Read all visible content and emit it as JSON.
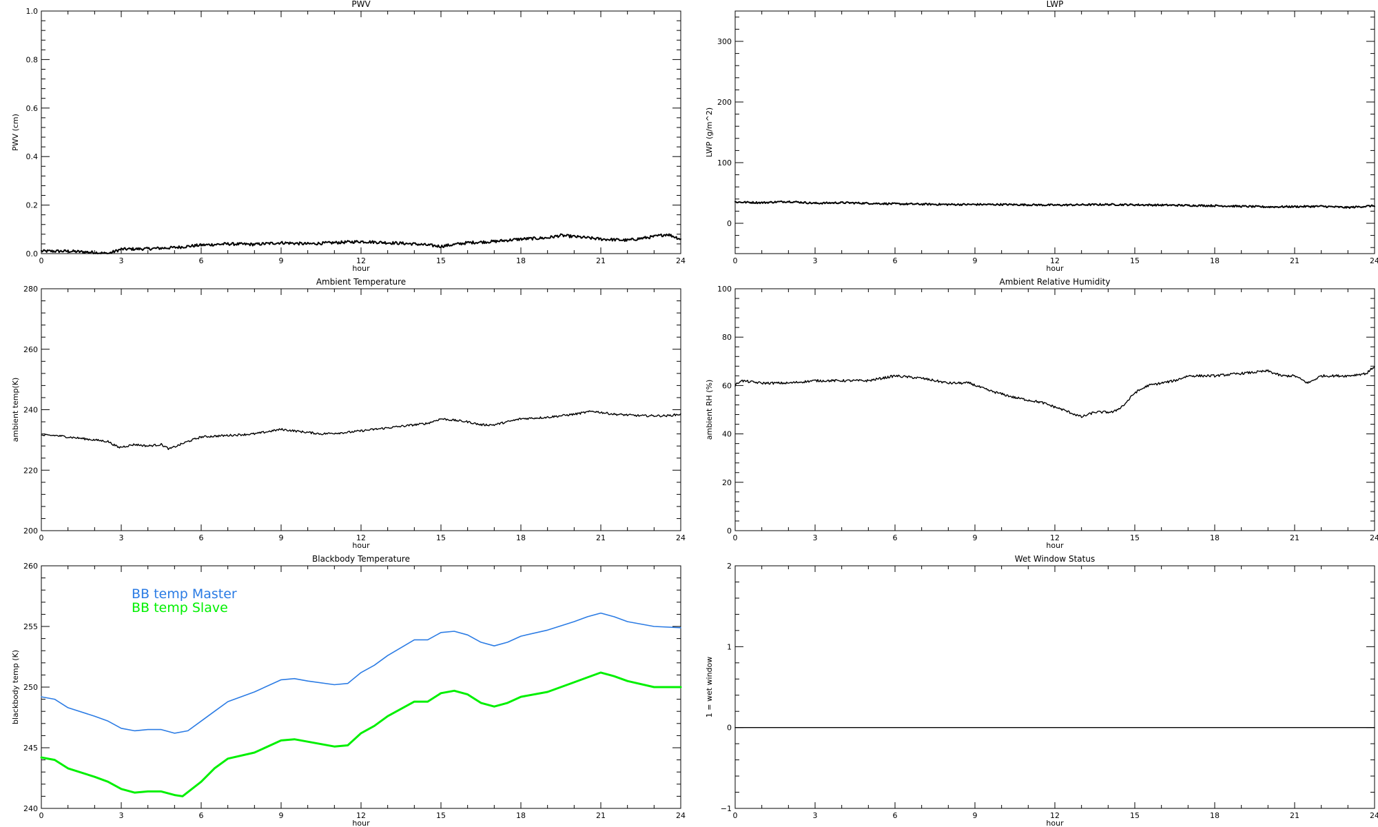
{
  "chart_data": [
    {
      "type": "line",
      "title": "PWV",
      "xlabel": "hour",
      "ylabel": "PWV (cm)",
      "xlim": [
        0,
        24
      ],
      "ylim": [
        0.0,
        1.0
      ],
      "xticks": [
        0,
        3,
        6,
        9,
        12,
        15,
        18,
        21,
        24
      ],
      "xtick_labels": [
        "0",
        "3",
        "6",
        "9",
        "12",
        "15",
        "18",
        "21",
        "24"
      ],
      "yticks": [
        0.0,
        0.2,
        0.4,
        0.6,
        0.8,
        1.0
      ],
      "ytick_labels": [
        "0.0",
        "0.2",
        "0.4",
        "0.6",
        "0.8",
        "1.0"
      ],
      "noise": 0.006,
      "series": [
        {
          "color": "#000000",
          "width": 2,
          "x": [
            0,
            1,
            2,
            2.5,
            3,
            4,
            5,
            5.5,
            6,
            7,
            8,
            9,
            10,
            11,
            12,
            13,
            14,
            15,
            16,
            17,
            18,
            19,
            19.5,
            20,
            21,
            22,
            23,
            23.5,
            24
          ],
          "y": [
            0.01,
            0.01,
            0.005,
            0.0,
            0.018,
            0.02,
            0.025,
            0.03,
            0.035,
            0.04,
            0.038,
            0.045,
            0.04,
            0.045,
            0.05,
            0.045,
            0.04,
            0.03,
            0.045,
            0.05,
            0.06,
            0.065,
            0.075,
            0.07,
            0.06,
            0.055,
            0.07,
            0.08,
            0.06
          ]
        }
      ]
    },
    {
      "type": "line",
      "title": "LWP",
      "xlabel": "hour",
      "ylabel": "LWP (g/m^2)",
      "xlim": [
        0,
        24
      ],
      "ylim": [
        -50,
        350
      ],
      "xticks": [
        0,
        3,
        6,
        9,
        12,
        15,
        18,
        21,
        24
      ],
      "xtick_labels": [
        "0",
        "3",
        "6",
        "9",
        "12",
        "15",
        "18",
        "21",
        "24"
      ],
      "yticks": [
        0,
        100,
        200,
        300
      ],
      "ytick_labels": [
        "0",
        "100",
        "200",
        "300"
      ],
      "noise": 1.5,
      "series": [
        {
          "color": "#000000",
          "width": 2,
          "x": [
            0,
            1,
            2,
            3,
            4,
            6,
            8,
            10,
            12,
            14,
            16,
            18,
            20,
            22,
            23,
            24
          ],
          "y": [
            35,
            34,
            36,
            33,
            34,
            32,
            31,
            31,
            30,
            31,
            30,
            29,
            27,
            28,
            26,
            29
          ]
        }
      ]
    },
    {
      "type": "line",
      "title": "Ambient Temperature",
      "xlabel": "hour",
      "ylabel": "ambient temp(K)",
      "xlim": [
        0,
        24
      ],
      "ylim": [
        200,
        280
      ],
      "xticks": [
        0,
        3,
        6,
        9,
        12,
        15,
        18,
        21,
        24
      ],
      "xtick_labels": [
        "0",
        "3",
        "6",
        "9",
        "12",
        "15",
        "18",
        "21",
        "24"
      ],
      "yticks": [
        200,
        220,
        240,
        260,
        280
      ],
      "ytick_labels": [
        "200",
        "220",
        "240",
        "260",
        "280"
      ],
      "noise": 0.35,
      "series": [
        {
          "color": "#000000",
          "width": 1.4,
          "x": [
            0,
            0.5,
            1.5,
            2.5,
            2.9,
            3.5,
            4.0,
            4.5,
            4.8,
            5.5,
            6.0,
            7.0,
            8.0,
            9.0,
            9.5,
            10.5,
            11.5,
            12.5,
            13.5,
            14.5,
            15.0,
            16.0,
            16.5,
            17.0,
            18.0,
            19.0,
            20.0,
            20.7,
            21.5,
            22.5,
            23.5,
            24.0
          ],
          "y": [
            231.5,
            231.5,
            230.5,
            229.5,
            227.5,
            228.5,
            228.0,
            228.5,
            227.0,
            229.5,
            231.0,
            231.5,
            232.0,
            233.5,
            233.0,
            232.0,
            232.5,
            233.5,
            234.5,
            235.5,
            237.0,
            236.0,
            235.0,
            235.0,
            237.0,
            237.5,
            238.5,
            239.5,
            238.5,
            238.0,
            238.0,
            238.5
          ]
        }
      ]
    },
    {
      "type": "line",
      "title": "Ambient Relative Humidity",
      "xlabel": "hour",
      "ylabel": "ambient RH (%)",
      "xlim": [
        0,
        24
      ],
      "ylim": [
        0,
        100
      ],
      "xticks": [
        0,
        3,
        6,
        9,
        12,
        15,
        18,
        21,
        24
      ],
      "xtick_labels": [
        "0",
        "3",
        "6",
        "9",
        "12",
        "15",
        "18",
        "21",
        "24"
      ],
      "yticks": [
        0,
        20,
        40,
        60,
        80,
        100
      ],
      "ytick_labels": [
        "0",
        "20",
        "40",
        "60",
        "80",
        "100"
      ],
      "noise": 0.5,
      "series": [
        {
          "color": "#000000",
          "width": 1.4,
          "x": [
            0,
            0.2,
            1.0,
            2.0,
            3.0,
            4.0,
            5.0,
            6.0,
            7.0,
            8.0,
            8.8,
            9.5,
            10.5,
            11.5,
            12.3,
            13.0,
            13.5,
            14.2,
            14.6,
            15.0,
            15.5,
            16.5,
            17.0,
            18.0,
            19.0,
            20.0,
            20.5,
            21.0,
            21.5,
            22.0,
            23.0,
            23.7,
            24.0
          ],
          "y": [
            60,
            62,
            61,
            61,
            62,
            62,
            62,
            64,
            63,
            61,
            61,
            58,
            55,
            53,
            50,
            47,
            49,
            49,
            52,
            57,
            60,
            62,
            64,
            64,
            65,
            66,
            64,
            64,
            61,
            64,
            64,
            65,
            68
          ]
        }
      ]
    },
    {
      "type": "line",
      "title": "Blackbody Temperature",
      "xlabel": "hour",
      "ylabel": "blackbody temp (K)",
      "xlim": [
        0,
        24
      ],
      "ylim": [
        240,
        260
      ],
      "xticks": [
        0,
        3,
        6,
        9,
        12,
        15,
        18,
        21,
        24
      ],
      "xtick_labels": [
        "0",
        "3",
        "6",
        "9",
        "12",
        "15",
        "18",
        "21",
        "24"
      ],
      "yticks": [
        240,
        245,
        250,
        255,
        260
      ],
      "ytick_labels": [
        "240",
        "245",
        "250",
        "255",
        "260"
      ],
      "noise": 0,
      "legend": [
        "BB temp Master",
        "BB temp Slave"
      ],
      "series": [
        {
          "color": "#2a7be4",
          "width": 1.6,
          "x": [
            0,
            0.5,
            1,
            2,
            2.5,
            3,
            3.5,
            4,
            4.5,
            5,
            5.5,
            6,
            6.5,
            7,
            8,
            9,
            9.5,
            10,
            11,
            11.5,
            12,
            12.5,
            13,
            14,
            14.5,
            15,
            15.5,
            16,
            16.5,
            17,
            17.5,
            18,
            19,
            20,
            20.5,
            21,
            21.5,
            22,
            23,
            24
          ],
          "y": [
            249.2,
            249.0,
            248.3,
            247.6,
            247.2,
            246.6,
            246.4,
            246.5,
            246.5,
            246.2,
            246.4,
            247.2,
            248.0,
            248.8,
            249.6,
            250.6,
            250.7,
            250.5,
            250.2,
            250.3,
            251.2,
            251.8,
            252.6,
            253.9,
            253.9,
            254.5,
            254.6,
            254.3,
            253.7,
            253.4,
            253.7,
            254.2,
            254.7,
            255.4,
            255.8,
            256.1,
            255.8,
            255.4,
            255.0,
            254.9
          ]
        },
        {
          "color": "#00f000",
          "width": 3,
          "x": [
            0,
            0.5,
            1,
            2,
            2.5,
            3,
            3.5,
            4,
            4.5,
            5,
            5.3,
            6,
            6.5,
            7,
            8,
            9,
            9.5,
            10,
            11,
            11.5,
            12,
            12.5,
            13,
            14,
            14.5,
            15,
            15.5,
            16,
            16.5,
            17,
            17.5,
            18,
            19,
            20,
            20.5,
            21,
            21.5,
            22,
            23,
            24
          ],
          "y": [
            244.2,
            244.0,
            243.3,
            242.6,
            242.2,
            241.6,
            241.3,
            241.4,
            241.4,
            241.1,
            241.0,
            242.2,
            243.3,
            244.1,
            244.6,
            245.6,
            245.7,
            245.5,
            245.1,
            245.2,
            246.2,
            246.8,
            247.6,
            248.8,
            248.8,
            249.5,
            249.7,
            249.4,
            248.7,
            248.4,
            248.7,
            249.2,
            249.6,
            250.4,
            250.8,
            251.2,
            250.9,
            250.5,
            250.0,
            250.0
          ]
        }
      ]
    },
    {
      "type": "line",
      "title": "Wet Window Status",
      "xlabel": "hour",
      "ylabel": "1 = wet window",
      "xlim": [
        0,
        24
      ],
      "ylim": [
        -1,
        2
      ],
      "xticks": [
        0,
        3,
        6,
        9,
        12,
        15,
        18,
        21,
        24
      ],
      "xtick_labels": [
        "0",
        "3",
        "6",
        "9",
        "12",
        "15",
        "18",
        "21",
        "24"
      ],
      "yticks": [
        -1,
        0,
        1,
        2
      ],
      "ytick_labels": [
        "−1",
        "0",
        "1",
        "2"
      ],
      "noise": 0,
      "series": [
        {
          "color": "#000000",
          "width": 1.4,
          "x": [
            0,
            24
          ],
          "y": [
            0,
            0
          ]
        }
      ]
    }
  ]
}
